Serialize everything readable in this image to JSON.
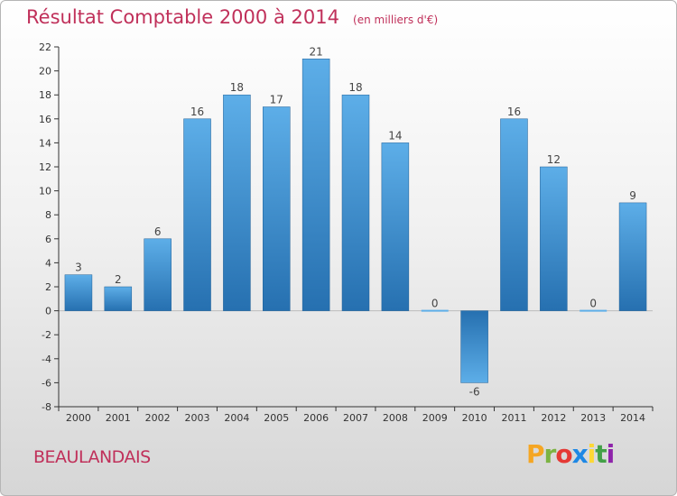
{
  "header": {
    "title": "Résultat Comptable 2000 à 2014",
    "subtitle": "(en milliers d'€)"
  },
  "footer": {
    "town": "BEAULANDAIS",
    "logo_letters": [
      "P",
      "r",
      "o",
      "x",
      "i",
      "t",
      "i"
    ],
    "logo_colors": [
      "#f5a623",
      "#7cb342",
      "#e53935",
      "#1e88e5",
      "#fdd835",
      "#43a047",
      "#8e24aa"
    ]
  },
  "colors": {
    "bar_light": "#5daee8",
    "bar_dark": "#2670b0",
    "axis": "#333333",
    "grid": "#e6e6e6"
  },
  "chart_data": {
    "type": "bar",
    "title": "Résultat Comptable 2000 à 2014",
    "categories": [
      "2000",
      "2001",
      "2002",
      "2003",
      "2004",
      "2005",
      "2006",
      "2007",
      "2008",
      "2009",
      "2010",
      "2011",
      "2012",
      "2013",
      "2014"
    ],
    "values": [
      3,
      2,
      6,
      16,
      18,
      17,
      21,
      18,
      14,
      0,
      -6,
      16,
      12,
      0,
      9
    ],
    "value_labels": [
      "3",
      "2",
      "6",
      "16",
      "18",
      "17",
      "21",
      "18",
      "14",
      "0",
      "-6",
      "16",
      "12",
      "0",
      "9"
    ],
    "y_ticks": [
      22,
      20,
      18,
      16,
      14,
      12,
      10,
      8,
      6,
      4,
      2,
      0,
      -2,
      -4,
      -6,
      -8
    ],
    "ylim": [
      -8,
      22
    ],
    "xlabel": "",
    "ylabel": ""
  }
}
